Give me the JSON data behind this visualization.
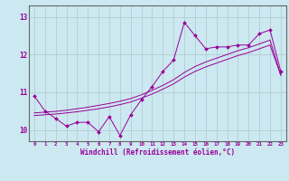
{
  "xlabel": "Windchill (Refroidissement éolien,°C)",
  "background_color": "#cce8f0",
  "line_color": "#990099",
  "grid_color": "#b0c8d0",
  "xlim": [
    -0.5,
    23.5
  ],
  "ylim": [
    9.7,
    13.3
  ],
  "yticks": [
    10,
    11,
    12,
    13
  ],
  "xticks": [
    0,
    1,
    2,
    3,
    4,
    5,
    6,
    7,
    8,
    9,
    10,
    11,
    12,
    13,
    14,
    15,
    16,
    17,
    18,
    19,
    20,
    21,
    22,
    23
  ],
  "series1_x": [
    0,
    1,
    2,
    3,
    4,
    5,
    6,
    7,
    8,
    9,
    10,
    11,
    12,
    13,
    14,
    15,
    16,
    17,
    18,
    19,
    20,
    21,
    22,
    23
  ],
  "series1_y": [
    10.9,
    10.5,
    10.3,
    10.1,
    10.2,
    10.2,
    9.95,
    10.35,
    9.85,
    10.4,
    10.8,
    11.15,
    11.55,
    11.85,
    12.85,
    12.5,
    12.15,
    12.2,
    12.2,
    12.25,
    12.25,
    12.55,
    12.65,
    11.55
  ],
  "series2_x": [
    0,
    1,
    2,
    3,
    4,
    5,
    6,
    7,
    8,
    9,
    10,
    11,
    12,
    13,
    14,
    15,
    16,
    17,
    18,
    19,
    20,
    21,
    22,
    23
  ],
  "series2_y": [
    10.45,
    10.47,
    10.49,
    10.52,
    10.56,
    10.6,
    10.65,
    10.7,
    10.76,
    10.83,
    10.93,
    11.05,
    11.18,
    11.33,
    11.52,
    11.68,
    11.8,
    11.9,
    12.0,
    12.1,
    12.18,
    12.28,
    12.38,
    11.45
  ],
  "series3_x": [
    0,
    1,
    2,
    3,
    4,
    5,
    6,
    7,
    8,
    9,
    10,
    11,
    12,
    13,
    14,
    15,
    16,
    17,
    18,
    19,
    20,
    21,
    22,
    23
  ],
  "series3_y": [
    10.38,
    10.4,
    10.42,
    10.45,
    10.48,
    10.52,
    10.56,
    10.61,
    10.67,
    10.74,
    10.84,
    10.95,
    11.08,
    11.22,
    11.4,
    11.55,
    11.67,
    11.77,
    11.87,
    11.97,
    12.05,
    12.15,
    12.25,
    11.45
  ]
}
